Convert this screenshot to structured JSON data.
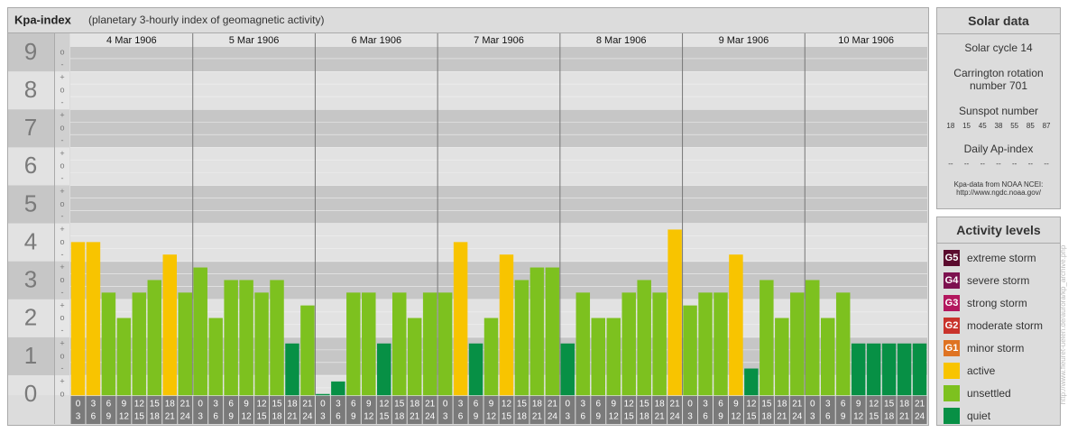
{
  "title": "Kpa-index",
  "subtitle": "(planetary 3-hourly index of geomagnetic activity)",
  "chart_data": {
    "type": "bar",
    "ylim": [
      0,
      9.5
    ],
    "yticks": [
      0,
      1,
      2,
      3,
      4,
      5,
      6,
      7,
      8,
      9
    ],
    "minor_ticks": [
      {
        "value": 0,
        "label": "o"
      },
      {
        "value": 0.33,
        "label": "+"
      },
      {
        "value": 0.67,
        "label": "-"
      },
      {
        "value": 1,
        "label": "o"
      },
      {
        "value": 1.33,
        "label": "+"
      },
      {
        "value": 1.67,
        "label": "-"
      },
      {
        "value": 2,
        "label": "o"
      },
      {
        "value": 2.33,
        "label": "+"
      },
      {
        "value": 2.67,
        "label": "-"
      },
      {
        "value": 3,
        "label": "o"
      },
      {
        "value": 3.33,
        "label": "+"
      },
      {
        "value": 3.67,
        "label": "-"
      },
      {
        "value": 4,
        "label": "o"
      },
      {
        "value": 4.33,
        "label": "+"
      },
      {
        "value": 4.67,
        "label": "-"
      },
      {
        "value": 5,
        "label": "o"
      },
      {
        "value": 5.33,
        "label": "+"
      },
      {
        "value": 5.67,
        "label": "-"
      },
      {
        "value": 6,
        "label": "o"
      },
      {
        "value": 6.33,
        "label": "+"
      },
      {
        "value": 6.67,
        "label": "-"
      },
      {
        "value": 7,
        "label": "o"
      },
      {
        "value": 7.33,
        "label": "+"
      },
      {
        "value": 7.67,
        "label": "-"
      },
      {
        "value": 8,
        "label": "o"
      },
      {
        "value": 8.33,
        "label": "+"
      },
      {
        "value": 8.67,
        "label": "-"
      },
      {
        "value": 9,
        "label": "o"
      }
    ],
    "hours": [
      {
        "from": "0",
        "to": "3"
      },
      {
        "from": "3",
        "to": "6"
      },
      {
        "from": "6",
        "to": "9"
      },
      {
        "from": "9",
        "to": "12"
      },
      {
        "from": "12",
        "to": "15"
      },
      {
        "from": "15",
        "to": "18"
      },
      {
        "from": "18",
        "to": "21"
      },
      {
        "from": "21",
        "to": "24"
      }
    ],
    "series": [
      {
        "name": "4 Mar 1906",
        "values": [
          4,
          4,
          2.67,
          2,
          2.67,
          3,
          3.67,
          2.67
        ],
        "colors": [
          "#f8c400",
          "#f8c400",
          "#7dc11f",
          "#7dc11f",
          "#7dc11f",
          "#7dc11f",
          "#f8c400",
          "#7dc11f"
        ]
      },
      {
        "name": "5 Mar 1906",
        "values": [
          3.33,
          2,
          3,
          3,
          2.67,
          3,
          1.33,
          2.33
        ],
        "colors": [
          "#7dc11f",
          "#7dc11f",
          "#7dc11f",
          "#7dc11f",
          "#7dc11f",
          "#7dc11f",
          "#079045",
          "#7dc11f"
        ]
      },
      {
        "name": "6 Mar 1906",
        "values": [
          0,
          0.33,
          2.67,
          2.67,
          1.33,
          2.67,
          2,
          2.67
        ],
        "colors": [
          "#079045",
          "#079045",
          "#7dc11f",
          "#7dc11f",
          "#079045",
          "#7dc11f",
          "#7dc11f",
          "#7dc11f"
        ]
      },
      {
        "name": "7 Mar 1906",
        "values": [
          2.67,
          4,
          1.33,
          2,
          3.67,
          3,
          3.33,
          3.33
        ],
        "colors": [
          "#7dc11f",
          "#f8c400",
          "#079045",
          "#7dc11f",
          "#f8c400",
          "#7dc11f",
          "#7dc11f",
          "#7dc11f"
        ]
      },
      {
        "name": "8 Mar 1906",
        "values": [
          1.33,
          2.67,
          2,
          2,
          2.67,
          3,
          2.67,
          4.33
        ],
        "colors": [
          "#079045",
          "#7dc11f",
          "#7dc11f",
          "#7dc11f",
          "#7dc11f",
          "#7dc11f",
          "#7dc11f",
          "#f8c400"
        ]
      },
      {
        "name": "9 Mar 1906",
        "values": [
          2.33,
          2.67,
          2.67,
          3.67,
          0.67,
          3,
          2,
          2.67
        ],
        "colors": [
          "#7dc11f",
          "#7dc11f",
          "#7dc11f",
          "#f8c400",
          "#079045",
          "#7dc11f",
          "#7dc11f",
          "#7dc11f"
        ]
      },
      {
        "name": "10 Mar 1906",
        "values": [
          3,
          2,
          2.67,
          1.33,
          1.33,
          1.33,
          1.33,
          1.33
        ],
        "colors": [
          "#7dc11f",
          "#7dc11f",
          "#7dc11f",
          "#079045",
          "#079045",
          "#079045",
          "#079045",
          "#079045"
        ]
      }
    ]
  },
  "solar": {
    "title": "Solar data",
    "cycle": "Solar cycle 14",
    "carrington": "Carrington rotation number 701",
    "sunspot_title": "Sunspot number",
    "sunspots": [
      18,
      15,
      45,
      38,
      55,
      85,
      87
    ],
    "ap_title": "Daily Ap-index",
    "ap": [
      "--",
      "--",
      "--",
      "--",
      "--",
      "--",
      "--"
    ],
    "source": "Kpa-data from NOAA NCEI:",
    "source_url": "http://www.ngdc.noaa.gov/"
  },
  "activity": {
    "title": "Activity levels",
    "levels": [
      {
        "code": "G5",
        "label": "extreme storm",
        "color": "#5b0b2e"
      },
      {
        "code": "G4",
        "label": "severe storm",
        "color": "#7d1150"
      },
      {
        "code": "G3",
        "label": "strong storm",
        "color": "#b3175e"
      },
      {
        "code": "G2",
        "label": "moderate storm",
        "color": "#c9332c"
      },
      {
        "code": "G1",
        "label": "minor storm",
        "color": "#df7322"
      },
      {
        "label": "active",
        "color": "#f8c400"
      },
      {
        "label": "unsettled",
        "color": "#7dc11f"
      },
      {
        "label": "quiet",
        "color": "#079045"
      }
    ]
  },
  "watermark": "http://www.fleuret-uelen.de/aurora/kp_archive.php"
}
